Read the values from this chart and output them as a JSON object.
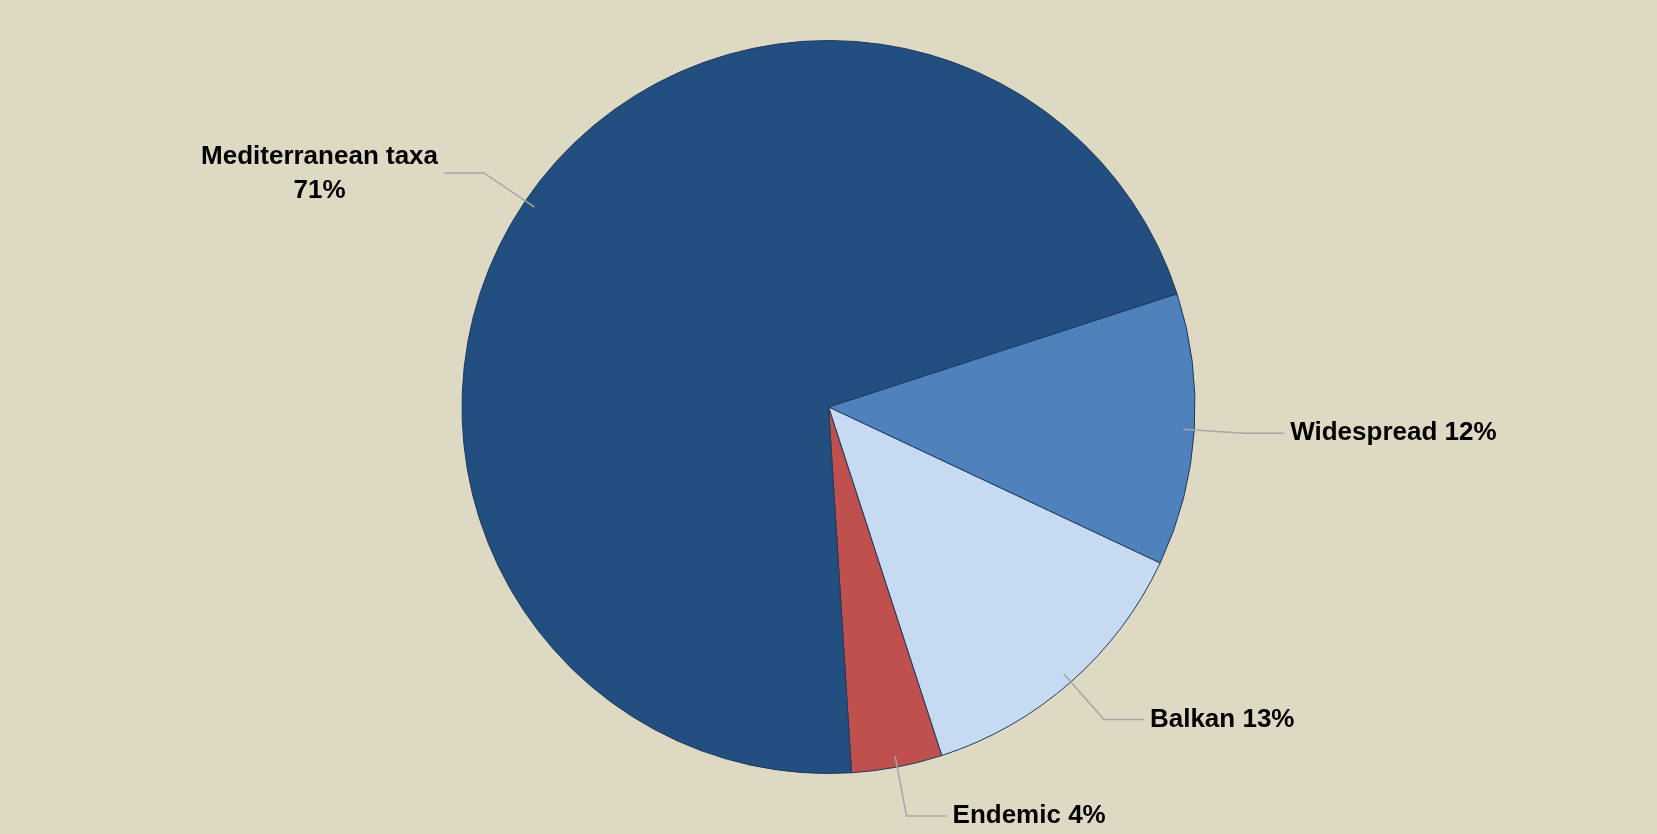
{
  "chart_data": {
    "type": "pie",
    "categories": [
      "Widespread",
      "Balkan",
      "Endemic",
      "Mediterranean taxa"
    ],
    "values": [
      12,
      13,
      4,
      71
    ],
    "value_labels": [
      "12%",
      "13%",
      "4%",
      "71%"
    ],
    "colors": [
      "#4f81bd",
      "#c6dbf2",
      "#c0504d",
      "#234e80"
    ],
    "legend": false
  }
}
